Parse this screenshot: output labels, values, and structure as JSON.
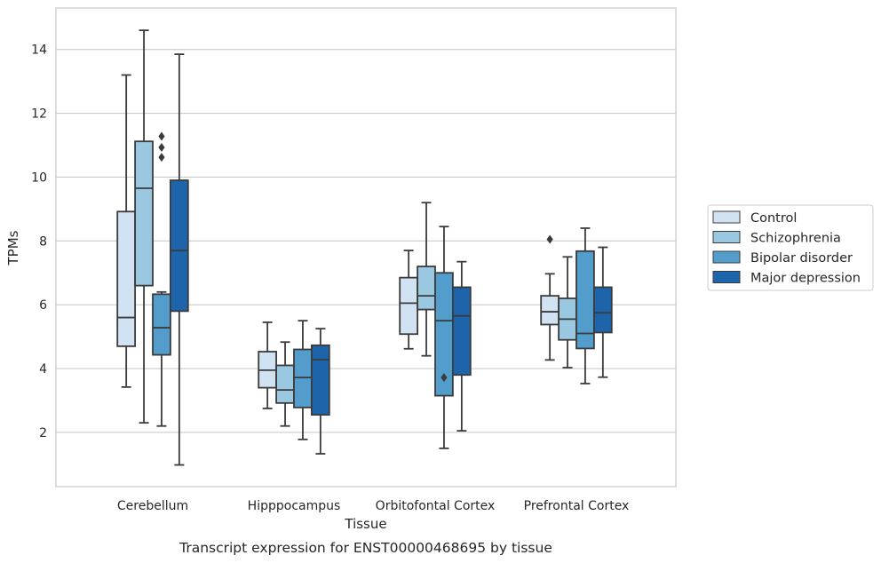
{
  "chart_data": {
    "type": "box",
    "caption": "Transcript expression for ENST00000468695 by tissue",
    "xlabel": "Tissue",
    "ylabel": "TPMs",
    "ylim": [
      0.3,
      15.3
    ],
    "yticks": [
      2,
      4,
      6,
      8,
      10,
      12,
      14
    ],
    "grid": "horizontal",
    "legend_position": "right",
    "categories": [
      "Cerebellum",
      "Hipppocampus",
      "Orbitofontal Cortex",
      "Prefrontal Cortex"
    ],
    "series": [
      {
        "name": "Control",
        "color": "#d1e2f2",
        "boxes": [
          {
            "whislo": 3.42,
            "q1": 4.7,
            "med": 5.6,
            "q3": 8.92,
            "whishi": 13.2,
            "fliers": []
          },
          {
            "whislo": 2.75,
            "q1": 3.4,
            "med": 3.95,
            "q3": 4.53,
            "whishi": 5.45,
            "fliers": []
          },
          {
            "whislo": 4.62,
            "q1": 5.08,
            "med": 6.05,
            "q3": 6.85,
            "whishi": 7.7,
            "fliers": []
          },
          {
            "whislo": 4.27,
            "q1": 5.38,
            "med": 5.78,
            "q3": 6.28,
            "whishi": 6.97,
            "fliers": [
              8.05
            ]
          }
        ]
      },
      {
        "name": "Schizophrenia",
        "color": "#9ac8e0",
        "boxes": [
          {
            "whislo": 2.3,
            "q1": 6.6,
            "med": 9.65,
            "q3": 11.12,
            "whishi": 14.6,
            "fliers": []
          },
          {
            "whislo": 2.2,
            "q1": 2.92,
            "med": 3.33,
            "q3": 4.1,
            "whishi": 4.83,
            "fliers": []
          },
          {
            "whislo": 4.4,
            "q1": 5.85,
            "med": 6.28,
            "q3": 7.2,
            "whishi": 9.2,
            "fliers": []
          },
          {
            "whislo": 4.03,
            "q1": 4.9,
            "med": 5.55,
            "q3": 6.2,
            "whishi": 7.5,
            "fliers": []
          }
        ]
      },
      {
        "name": "Bipolar disorder",
        "color": "#529dcc",
        "boxes": [
          {
            "whislo": 2.2,
            "q1": 4.43,
            "med": 5.28,
            "q3": 6.33,
            "whishi": 6.4,
            "fliers": [
              10.62,
              10.93,
              11.28
            ]
          },
          {
            "whislo": 1.78,
            "q1": 2.78,
            "med": 3.72,
            "q3": 4.6,
            "whishi": 5.5,
            "fliers": []
          },
          {
            "whislo": 1.5,
            "q1": 3.15,
            "med": 5.5,
            "q3": 7.0,
            "whishi": 8.45,
            "fliers": [
              3.72
            ]
          },
          {
            "whislo": 3.53,
            "q1": 4.63,
            "med": 5.1,
            "q3": 7.68,
            "whishi": 8.4,
            "fliers": []
          }
        ]
      },
      {
        "name": "Major depression",
        "color": "#1d64ab",
        "boxes": [
          {
            "whislo": 0.98,
            "q1": 5.8,
            "med": 7.7,
            "q3": 9.9,
            "whishi": 13.85,
            "fliers": []
          },
          {
            "whislo": 1.33,
            "q1": 2.55,
            "med": 4.28,
            "q3": 4.73,
            "whishi": 5.25,
            "fliers": []
          },
          {
            "whislo": 2.05,
            "q1": 3.8,
            "med": 5.65,
            "q3": 6.55,
            "whishi": 7.35,
            "fliers": []
          },
          {
            "whislo": 3.73,
            "q1": 5.13,
            "med": 5.75,
            "q3": 6.55,
            "whishi": 7.8,
            "fliers": []
          }
        ]
      }
    ]
  }
}
